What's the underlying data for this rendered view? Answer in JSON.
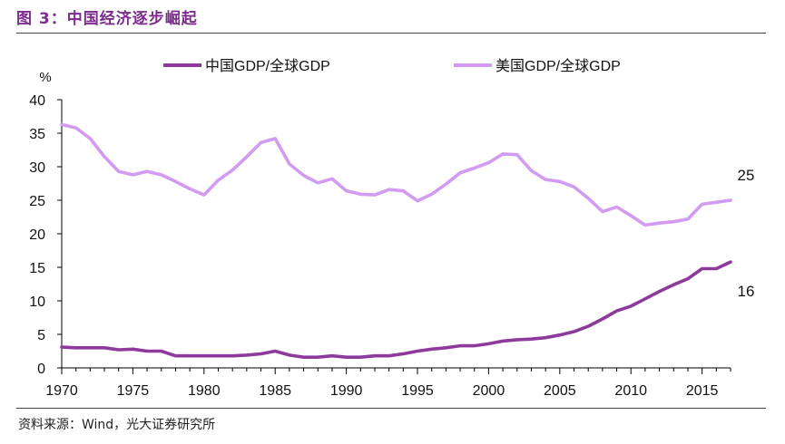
{
  "figure": {
    "title": "图 3：中国经济逐步崛起",
    "source": "资料来源：Wind，光大证券研究所"
  },
  "chart_data": {
    "type": "line",
    "title": "",
    "ylabel": "%",
    "xlabel": "",
    "xlim": [
      1970,
      2017
    ],
    "ylim": [
      0,
      40
    ],
    "x_ticks": [
      "1970",
      "1975",
      "1980",
      "1985",
      "1990",
      "1995",
      "2000",
      "2005",
      "2010",
      "2015"
    ],
    "y_ticks": [
      "0",
      "5",
      "10",
      "15",
      "20",
      "25",
      "30",
      "35",
      "40"
    ],
    "legend_position": "top",
    "grid": false,
    "x": [
      1970,
      1971,
      1972,
      1973,
      1974,
      1975,
      1976,
      1977,
      1978,
      1979,
      1980,
      1981,
      1982,
      1983,
      1984,
      1985,
      1986,
      1987,
      1988,
      1989,
      1990,
      1991,
      1992,
      1993,
      1994,
      1995,
      1996,
      1997,
      1998,
      1999,
      2000,
      2001,
      2002,
      2003,
      2004,
      2005,
      2006,
      2007,
      2008,
      2009,
      2010,
      2011,
      2012,
      2013,
      2014,
      2015,
      2016,
      2017
    ],
    "series": [
      {
        "name": "中国GDP/全球GDP",
        "color": "#8E3A9D",
        "end_label": "16",
        "values": [
          3.1,
          3.0,
          3.0,
          3.0,
          2.7,
          2.8,
          2.5,
          2.5,
          1.8,
          1.8,
          1.8,
          1.8,
          1.8,
          1.9,
          2.1,
          2.5,
          1.9,
          1.6,
          1.6,
          1.8,
          1.6,
          1.6,
          1.8,
          1.8,
          2.1,
          2.5,
          2.8,
          3.0,
          3.3,
          3.3,
          3.6,
          4.0,
          4.2,
          4.3,
          4.5,
          4.9,
          5.4,
          6.2,
          7.3,
          8.5,
          9.2,
          10.3,
          11.4,
          12.4,
          13.3,
          14.8,
          14.8,
          15.8
        ]
      },
      {
        "name": "美国GDP/全球GDP",
        "color": "#D29AF0",
        "end_label": "25",
        "values": [
          36.3,
          35.8,
          34.2,
          31.5,
          29.3,
          28.8,
          29.3,
          28.8,
          27.8,
          26.7,
          25.8,
          28.0,
          29.5,
          31.5,
          33.6,
          34.2,
          30.4,
          28.7,
          27.6,
          28.2,
          26.4,
          25.9,
          25.8,
          26.6,
          26.4,
          24.9,
          25.9,
          27.4,
          29.1,
          29.8,
          30.6,
          31.9,
          31.8,
          29.4,
          28.1,
          27.8,
          27.0,
          25.3,
          23.3,
          24.0,
          22.7,
          21.3,
          21.6,
          21.8,
          22.2,
          24.4,
          24.7,
          25.0
        ]
      }
    ]
  }
}
